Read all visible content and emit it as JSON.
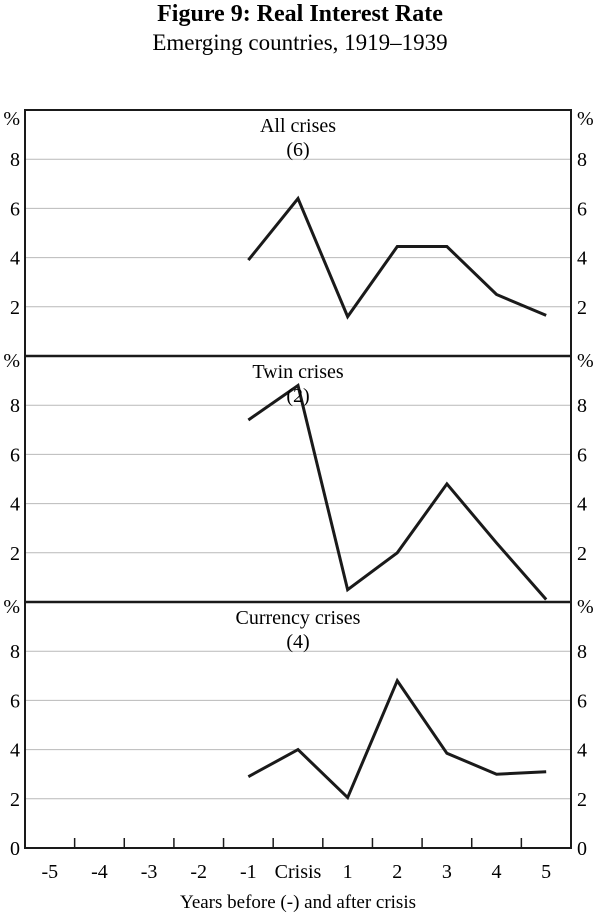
{
  "header": {
    "title": "Figure 9: Real Interest Rate",
    "subtitle": "Emerging countries, 1919–1939"
  },
  "chart_data": {
    "type": "line",
    "title": "Figure 9: Real Interest Rate",
    "subtitle": "Emerging countries, 1919–1939",
    "grid": true,
    "legend": false,
    "x_axis": {
      "title": "Years before (-) and after crisis",
      "range": [
        -5.5,
        5.5
      ],
      "tick_values": [
        -5,
        -4,
        -3,
        -2,
        -1,
        0,
        1,
        2,
        3,
        4,
        5
      ],
      "tick_labels": [
        "-5",
        "-4",
        "-3",
        "-2",
        "-1",
        "Crisis",
        "1",
        "2",
        "3",
        "4",
        "5"
      ],
      "minor_tick_values": [
        -4.5,
        -3.5,
        -2.5,
        -1.5,
        -0.5,
        0.5,
        1.5,
        2.5,
        3.5,
        4.5
      ]
    },
    "y_axis": {
      "unit_label": "%",
      "range": [
        0,
        10
      ],
      "tick_values": [
        8,
        6,
        4,
        2
      ],
      "zero_label": "0",
      "sides": "both"
    },
    "panels": [
      {
        "title": "All crises",
        "count_label": "(6)",
        "series": {
          "x": [
            -1,
            0,
            1,
            2,
            3,
            4,
            5
          ],
          "y": [
            3.9,
            6.4,
            1.6,
            4.45,
            4.45,
            2.5,
            1.65
          ]
        }
      },
      {
        "title": "Twin crises",
        "count_label": "(2)",
        "series": {
          "x": [
            -1,
            0,
            1,
            2,
            3,
            4,
            5
          ],
          "y": [
            7.4,
            8.8,
            0.5,
            2.0,
            4.8,
            2.4,
            0.1
          ]
        }
      },
      {
        "title": "Currency crises",
        "count_label": "(4)",
        "series": {
          "x": [
            -1,
            0,
            1,
            2,
            3,
            4,
            5
          ],
          "y": [
            2.9,
            4.0,
            2.05,
            6.8,
            3.85,
            3.0,
            3.1
          ]
        }
      }
    ],
    "colors": {
      "line": "#1a1a1a",
      "grid": "#b9b9b9",
      "frame": "#1a1a1a",
      "text": "#000000",
      "background": "#ffffff"
    }
  }
}
